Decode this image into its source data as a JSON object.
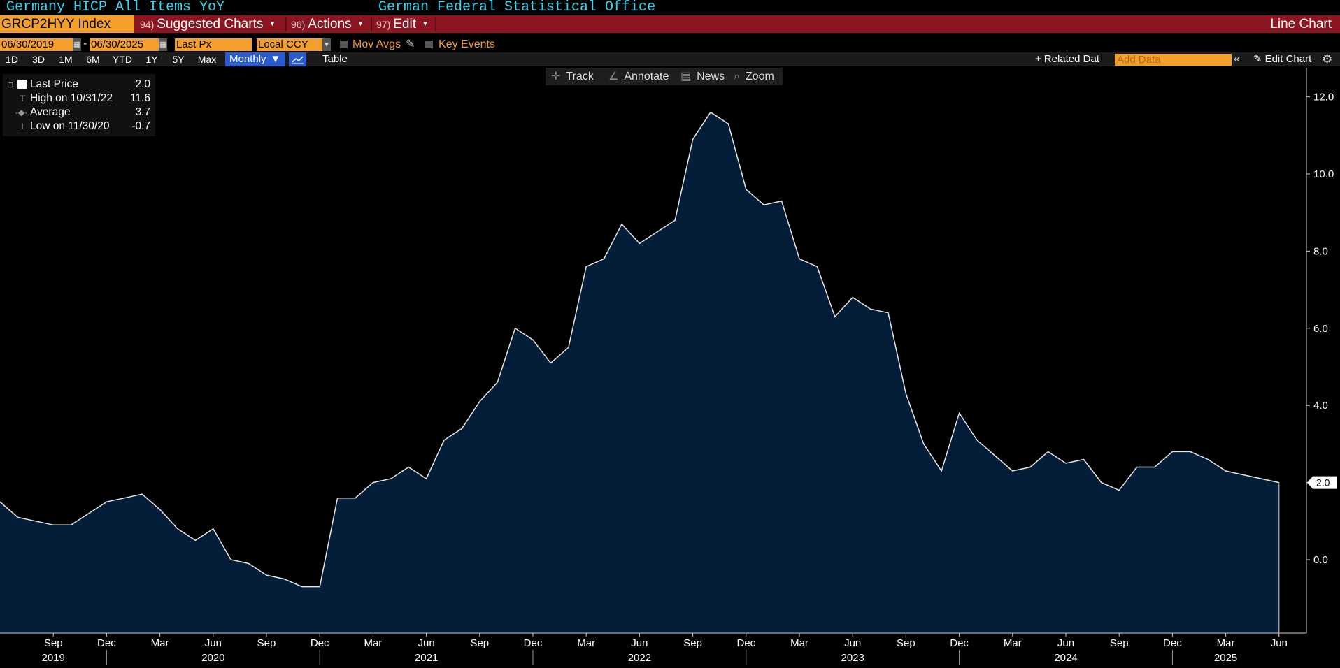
{
  "header": {
    "security_title": "Germany HICP All Items YoY",
    "source_title": "German Federal Statistical Office",
    "ticker": "GRCP2HYY Index",
    "menu": [
      {
        "num": "94)",
        "label": "Suggested Charts"
      },
      {
        "num": "96)",
        "label": "Actions"
      },
      {
        "num": "97)",
        "label": "Edit"
      }
    ],
    "chart_type_label": "Line Chart"
  },
  "options": {
    "start_date": "06/30/2019",
    "date_sep": "-",
    "end_date": "06/30/2025",
    "field": "Last Px",
    "currency": "Local CCY",
    "mov_avgs": "Mov Avgs",
    "key_events": "Key Events"
  },
  "toolbar": {
    "periods": [
      "1D",
      "3D",
      "1M",
      "6M",
      "YTD",
      "1Y",
      "5Y",
      "Max"
    ],
    "frequency": "Monthly",
    "table_label": "Table",
    "related_label": "Related Dat",
    "add_data_placeholder": "Add Data",
    "edit_chart_label": "Edit Chart"
  },
  "chart_tools": {
    "track": "Track",
    "annotate": "Annotate",
    "news": "News",
    "zoom": "Zoom"
  },
  "legend": {
    "last_price_label": "Last Price",
    "last_price_value": "2.0",
    "high_label": "High on 10/31/22",
    "high_value": "11.6",
    "average_label": "Average",
    "average_value": "3.7",
    "low_label": "Low on 11/30/20",
    "low_value": "-0.7"
  },
  "colors": {
    "area_fill": "#041e3a",
    "line": "#e6e6e6",
    "accent_orange": "#f2a02b",
    "title_cyan": "#3ad6f0",
    "menu_red": "#8b1520"
  },
  "chart_data": {
    "type": "area",
    "title": "Germany HICP All Items YoY",
    "x": [
      "2019-06",
      "2019-07",
      "2019-08",
      "2019-09",
      "2019-10",
      "2019-11",
      "2019-12",
      "2020-01",
      "2020-02",
      "2020-03",
      "2020-04",
      "2020-05",
      "2020-06",
      "2020-07",
      "2020-08",
      "2020-09",
      "2020-10",
      "2020-11",
      "2020-12",
      "2021-01",
      "2021-02",
      "2021-03",
      "2021-04",
      "2021-05",
      "2021-06",
      "2021-07",
      "2021-08",
      "2021-09",
      "2021-10",
      "2021-11",
      "2021-12",
      "2022-01",
      "2022-02",
      "2022-03",
      "2022-04",
      "2022-05",
      "2022-06",
      "2022-07",
      "2022-08",
      "2022-09",
      "2022-10",
      "2022-11",
      "2022-12",
      "2023-01",
      "2023-02",
      "2023-03",
      "2023-04",
      "2023-05",
      "2023-06",
      "2023-07",
      "2023-08",
      "2023-09",
      "2023-10",
      "2023-11",
      "2023-12",
      "2024-01",
      "2024-02",
      "2024-03",
      "2024-04",
      "2024-05",
      "2024-06",
      "2024-07",
      "2024-08",
      "2024-09",
      "2024-10",
      "2024-11",
      "2024-12",
      "2025-01",
      "2025-02",
      "2025-03",
      "2025-04",
      "2025-05",
      "2025-06"
    ],
    "series": [
      {
        "values": [
          1.5,
          1.1,
          1.0,
          0.9,
          0.9,
          1.2,
          1.5,
          1.6,
          1.7,
          1.3,
          0.8,
          0.5,
          0.8,
          0.0,
          -0.1,
          -0.4,
          -0.5,
          -0.7,
          -0.7,
          1.6,
          1.6,
          2.0,
          2.1,
          2.4,
          2.1,
          3.1,
          3.4,
          4.1,
          4.6,
          6.0,
          5.7,
          5.1,
          5.5,
          7.6,
          7.8,
          8.7,
          8.2,
          8.5,
          8.8,
          10.9,
          11.6,
          11.3,
          9.6,
          9.2,
          9.3,
          7.8,
          7.6,
          6.3,
          6.8,
          6.5,
          6.4,
          4.3,
          3.0,
          2.3,
          3.8,
          3.1,
          2.7,
          2.3,
          2.4,
          2.8,
          2.5,
          2.6,
          2.0,
          1.8,
          2.4,
          2.4,
          2.8,
          2.8,
          2.6,
          2.3,
          2.2,
          2.1,
          2.0
        ]
      }
    ],
    "last_value_label": "2.0",
    "ylim": [
      -1.9,
      12.9
    ],
    "y_ticks": [
      0.0,
      2.0,
      4.0,
      6.0,
      8.0,
      10.0,
      12.0
    ],
    "y_tick_labels": [
      "0.0",
      "2.0",
      "4.0",
      "6.0",
      "8.0",
      "10.0",
      "12.0"
    ],
    "x_month_ticks": [
      "2019-09",
      "2019-12",
      "2020-03",
      "2020-06",
      "2020-09",
      "2020-12",
      "2021-03",
      "2021-06",
      "2021-09",
      "2021-12",
      "2022-03",
      "2022-06",
      "2022-09",
      "2022-12",
      "2023-03",
      "2023-06",
      "2023-09",
      "2023-12",
      "2024-03",
      "2024-06",
      "2024-09",
      "2024-12",
      "2025-03",
      "2025-06"
    ],
    "x_month_labels": [
      "Sep",
      "Dec",
      "Mar",
      "Jun",
      "Sep",
      "Dec",
      "Mar",
      "Jun",
      "Sep",
      "Dec",
      "Mar",
      "Jun",
      "Sep",
      "Dec",
      "Mar",
      "Jun",
      "Sep",
      "Dec",
      "Mar",
      "Jun",
      "Sep",
      "Dec",
      "Mar",
      "Jun"
    ],
    "x_year_labels": [
      {
        "label": "2019",
        "at": "2019-09"
      },
      {
        "label": "2020",
        "at": "2020-06"
      },
      {
        "label": "2021",
        "at": "2021-06"
      },
      {
        "label": "2022",
        "at": "2022-06"
      },
      {
        "label": "2023",
        "at": "2023-06"
      },
      {
        "label": "2024",
        "at": "2024-06"
      },
      {
        "label": "2025",
        "at": "2025-03"
      }
    ],
    "x_year_dividers": [
      "2019-12",
      "2020-12",
      "2021-12",
      "2022-12",
      "2023-12",
      "2024-12"
    ],
    "grid": false,
    "legend_position": "top-left"
  }
}
